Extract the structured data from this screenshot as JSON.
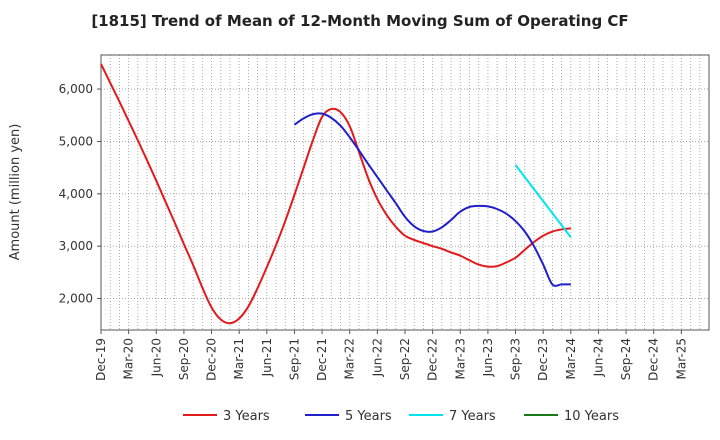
{
  "chart_data": {
    "type": "line",
    "title": "[1815]  Trend of Mean of 12-Month Moving Sum of Operating CF",
    "xlabel": "",
    "ylabel": "Amount (million yen)",
    "ylim": [
      1400,
      6650
    ],
    "yticks": [
      2000,
      3000,
      4000,
      5000,
      6000
    ],
    "ytick_labels": [
      "2,000",
      "3,000",
      "4,000",
      "5,000",
      "6,000"
    ],
    "grid": true,
    "legend_position": "bottom",
    "x_range_months": [
      0,
      66
    ],
    "xticks": [
      {
        "month": 0,
        "label": "Dec-19"
      },
      {
        "month": 3,
        "label": "Mar-20"
      },
      {
        "month": 6,
        "label": "Jun-20"
      },
      {
        "month": 9,
        "label": "Sep-20"
      },
      {
        "month": 12,
        "label": "Dec-20"
      },
      {
        "month": 15,
        "label": "Mar-21"
      },
      {
        "month": 18,
        "label": "Jun-21"
      },
      {
        "month": 21,
        "label": "Sep-21"
      },
      {
        "month": 24,
        "label": "Dec-21"
      },
      {
        "month": 27,
        "label": "Mar-22"
      },
      {
        "month": 30,
        "label": "Jun-22"
      },
      {
        "month": 33,
        "label": "Sep-22"
      },
      {
        "month": 36,
        "label": "Dec-22"
      },
      {
        "month": 39,
        "label": "Mar-23"
      },
      {
        "month": 42,
        "label": "Jun-23"
      },
      {
        "month": 45,
        "label": "Sep-23"
      },
      {
        "month": 48,
        "label": "Dec-23"
      },
      {
        "month": 51,
        "label": "Mar-24"
      },
      {
        "month": 54,
        "label": "Jun-24"
      },
      {
        "month": 57,
        "label": "Sep-24"
      },
      {
        "month": 60,
        "label": "Dec-24"
      },
      {
        "month": 63,
        "label": "Mar-25"
      }
    ],
    "series": [
      {
        "name": "3 Years",
        "color": "#e31a1c",
        "x": [
          0,
          1,
          2,
          3,
          4,
          5,
          6,
          7,
          8,
          9,
          10,
          11,
          12,
          13,
          14,
          15,
          16,
          17,
          18,
          19,
          20,
          21,
          22,
          23,
          24,
          25,
          26,
          27,
          28,
          29,
          30,
          31,
          32,
          33,
          34,
          35,
          36,
          37,
          38,
          39,
          40,
          41,
          42,
          43,
          44,
          45,
          46,
          47,
          48,
          49,
          50,
          51
        ],
        "values": [
          6480,
          6120,
          5760,
          5390,
          5020,
          4640,
          4250,
          3850,
          3450,
          3040,
          2640,
          2210,
          1830,
          1600,
          1530,
          1620,
          1850,
          2200,
          2600,
          3020,
          3480,
          3980,
          4500,
          5020,
          5470,
          5620,
          5560,
          5290,
          4800,
          4300,
          3900,
          3600,
          3370,
          3200,
          3120,
          3060,
          3000,
          2950,
          2880,
          2820,
          2730,
          2650,
          2610,
          2620,
          2690,
          2780,
          2930,
          3080,
          3200,
          3280,
          3320,
          3340
        ]
      },
      {
        "name": "5 Years",
        "color": "#1f1fcc",
        "x": [
          21,
          22,
          23,
          24,
          25,
          26,
          27,
          28,
          29,
          30,
          31,
          32,
          33,
          34,
          35,
          36,
          37,
          38,
          39,
          40,
          41,
          42,
          43,
          44,
          45,
          46,
          47,
          48,
          49,
          50,
          51
        ],
        "values": [
          5320,
          5440,
          5520,
          5530,
          5450,
          5300,
          5080,
          4830,
          4570,
          4320,
          4070,
          3820,
          3560,
          3380,
          3290,
          3280,
          3360,
          3500,
          3660,
          3750,
          3770,
          3760,
          3710,
          3620,
          3480,
          3280,
          3000,
          2650,
          2270,
          2270,
          2270
        ]
      },
      {
        "name": "7 Years",
        "color": "#00e5ee",
        "x": [
          45,
          51
        ],
        "values": [
          4550,
          3170
        ]
      },
      {
        "name": "10 Years",
        "color": "#1a7a1a",
        "x": [],
        "values": []
      }
    ]
  }
}
